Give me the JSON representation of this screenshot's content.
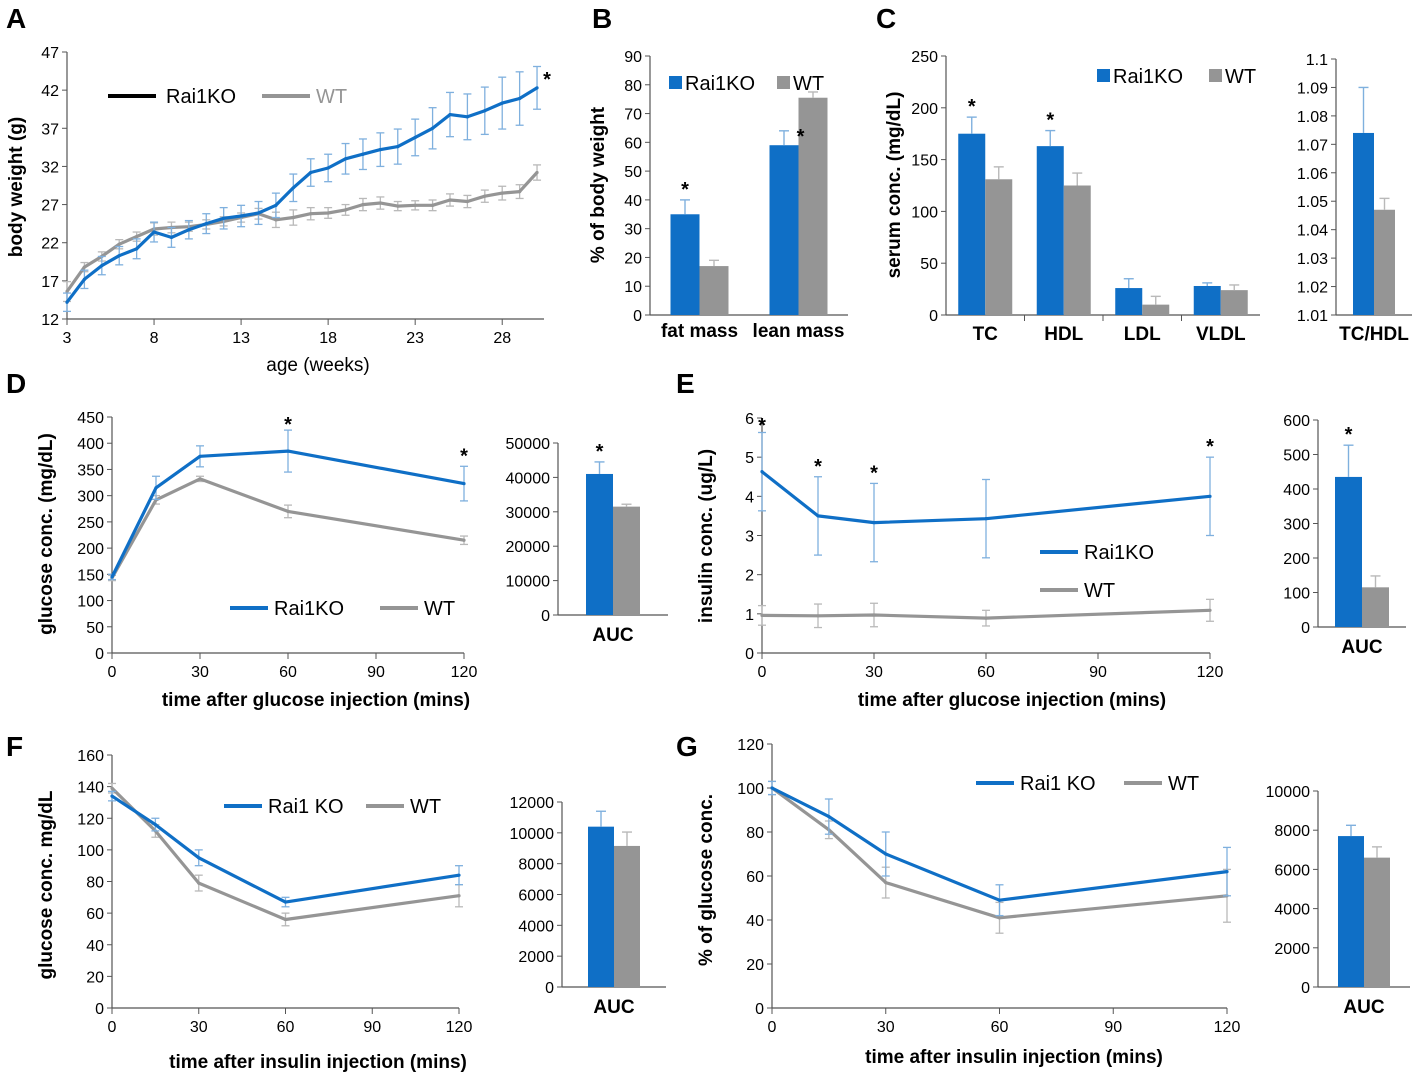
{
  "colors": {
    "ko": "#0F6FC6",
    "wt": "#959595",
    "ko_err": "#7FB0DE",
    "wt_err": "#B9B9B9"
  },
  "panels": {
    "A": {
      "letter": "A",
      "legend": [
        "Rai1KO",
        "WT"
      ],
      "xlabel": "age (weeks)",
      "ylabel": "body weight (g)"
    },
    "B": {
      "letter": "B",
      "legend": [
        "Rai1KO",
        "WT"
      ],
      "ylabel": "% of body weight"
    },
    "C": {
      "letter": "C",
      "legend": [
        "Rai1KO",
        "WT"
      ],
      "ylabel": "serum conc. (mg/dL)"
    },
    "D": {
      "letter": "D",
      "legend": [
        "Rai1KO",
        "WT"
      ],
      "xlabel": "time after glucose injection (mins)",
      "ylabel": "glucose conc. (mg/dL)"
    },
    "E": {
      "letter": "E",
      "legend": [
        "Rai1KO",
        "WT"
      ],
      "xlabel": "time after glucose injection (mins)",
      "ylabel": "insulin conc. (ug/L)"
    },
    "F": {
      "letter": "F",
      "legend": [
        "Rai1 KO",
        "WT"
      ],
      "xlabel": "time after insulin injection (mins)",
      "ylabel": "glucose conc. mg/dL"
    },
    "G": {
      "letter": "G",
      "legend": [
        "Rai1 KO",
        "WT"
      ],
      "xlabel": "time after insulin injection (mins)",
      "ylabel": "% of glucose conc."
    }
  },
  "chart_data": [
    {
      "id": "A",
      "type": "line",
      "xlabel": "age (weeks)",
      "ylabel": "body weight (g)",
      "xlim": [
        3,
        30
      ],
      "ylim": [
        12,
        47
      ],
      "xticks": [
        "3",
        "8",
        "13",
        "18",
        "23",
        "28"
      ],
      "yticks": [
        "12",
        "17",
        "22",
        "27",
        "32",
        "37",
        "42",
        "47"
      ],
      "x": [
        3,
        4,
        5,
        6,
        7,
        8,
        9,
        10,
        11,
        12,
        13,
        14,
        15,
        16,
        17,
        18,
        19,
        20,
        21,
        22,
        23,
        24,
        25,
        26,
        27,
        28,
        29,
        30
      ],
      "series": [
        {
          "name": "Rai1KO",
          "values": [
            14.2,
            17.2,
            19,
            20.3,
            21.2,
            23.4,
            22.7,
            23.7,
            24.5,
            25.2,
            25.5,
            25.9,
            26.9,
            29.2,
            31.2,
            31.8,
            33,
            33.6,
            34.2,
            34.6,
            35.8,
            37,
            38.8,
            38.5,
            39.3,
            40.3,
            40.9,
            42.3
          ],
          "errors": [
            1.2,
            1.2,
            1.2,
            1.2,
            1.3,
            1.3,
            1.3,
            1.2,
            1.3,
            1.4,
            1.4,
            1.5,
            1.6,
            1.8,
            1.8,
            1.8,
            2,
            2,
            2.2,
            2.3,
            2.4,
            2.7,
            2.9,
            3,
            3.1,
            3.4,
            3.5,
            2.8
          ]
        },
        {
          "name": "WT",
          "values": [
            15.6,
            18.8,
            20.2,
            21.8,
            22.8,
            23.8,
            24,
            24.1,
            24.4,
            24.8,
            25.3,
            25.8,
            25,
            25.3,
            25.8,
            25.9,
            26.3,
            27,
            27.2,
            26.8,
            26.9,
            26.9,
            27.6,
            27.4,
            28.1,
            28.5,
            28.7,
            31.2
          ],
          "errors": [
            1.3,
            0.6,
            0.6,
            0.6,
            0.6,
            0.8,
            0.7,
            0.6,
            0.6,
            0.6,
            0.6,
            0.7,
            1,
            1,
            0.8,
            0.7,
            0.7,
            0.8,
            0.8,
            0.6,
            0.6,
            0.7,
            0.8,
            0.8,
            0.8,
            0.9,
            0.9,
            1
          ]
        }
      ],
      "annotations": [
        {
          "x": 30,
          "text": "*"
        }
      ]
    },
    {
      "id": "B",
      "type": "bar",
      "ylabel": "% of body weight",
      "categories": [
        "fat mass",
        "lean mass"
      ],
      "ylim": [
        0,
        90
      ],
      "yticks": [
        "0",
        "10",
        "20",
        "30",
        "40",
        "50",
        "60",
        "70",
        "80",
        "90"
      ],
      "series": [
        {
          "name": "Rai1KO",
          "values": [
            35,
            59
          ],
          "errors": [
            5,
            5
          ]
        },
        {
          "name": "WT",
          "values": [
            17,
            75.5
          ],
          "errors": [
            2,
            2
          ]
        }
      ],
      "annotations": [
        {
          "category": "fat mass",
          "text": "*"
        },
        {
          "category": "lean mass",
          "text": "*"
        }
      ]
    },
    {
      "id": "C",
      "type": "bar",
      "ylabel": "serum conc. (mg/dL)",
      "categories": [
        "TC",
        "HDL",
        "LDL",
        "VLDL"
      ],
      "ylim": [
        0,
        250
      ],
      "yticks": [
        "0",
        "50",
        "100",
        "150",
        "200",
        "250"
      ],
      "series": [
        {
          "name": "Rai1KO",
          "values": [
            175,
            163,
            26,
            28
          ],
          "errors": [
            16,
            15,
            9,
            3
          ]
        },
        {
          "name": "WT",
          "values": [
            131,
            125,
            10,
            24
          ],
          "errors": [
            12,
            12,
            8,
            5
          ]
        }
      ],
      "annotations": [
        {
          "category": "TC",
          "text": "*"
        },
        {
          "category": "HDL",
          "text": "*"
        }
      ]
    },
    {
      "id": "C-ratio",
      "type": "bar",
      "categories": [
        "TC/HDL"
      ],
      "ylim": [
        1.01,
        1.1
      ],
      "yticks": [
        "1.01",
        "1.02",
        "1.03",
        "1.04",
        "1.05",
        "1.06",
        "1.07",
        "1.08",
        "1.09",
        "1.1"
      ],
      "series": [
        {
          "name": "Rai1KO",
          "values": [
            1.074
          ],
          "errors": [
            0.016
          ]
        },
        {
          "name": "WT",
          "values": [
            1.047
          ],
          "errors": [
            0.004
          ]
        }
      ]
    },
    {
      "id": "D",
      "type": "line",
      "xlabel": "time after glucose injection (mins)",
      "ylabel": "glucose conc. (mg/dL)",
      "xlim": [
        0,
        120
      ],
      "ylim": [
        0,
        450
      ],
      "xticks": [
        "0",
        "30",
        "60",
        "90",
        "120"
      ],
      "yticks": [
        "0",
        "50",
        "100",
        "150",
        "200",
        "250",
        "300",
        "350",
        "400",
        "450"
      ],
      "x": [
        0,
        15,
        30,
        60,
        120
      ],
      "series": [
        {
          "name": "Rai1KO",
          "values": [
            145,
            315,
            375,
            385,
            323
          ],
          "errors": [
            5,
            22,
            20,
            40,
            33
          ]
        },
        {
          "name": "WT",
          "values": [
            143,
            292,
            332,
            270,
            215
          ],
          "errors": [
            5,
            8,
            5,
            12,
            8
          ]
        }
      ],
      "annotations": [
        {
          "x": 60,
          "text": "*"
        },
        {
          "x": 120,
          "text": "*"
        }
      ]
    },
    {
      "id": "D-AUC",
      "type": "bar",
      "categories": [
        "AUC"
      ],
      "ylim": [
        0,
        50000
      ],
      "yticks": [
        "0",
        "10000",
        "20000",
        "30000",
        "40000",
        "50000"
      ],
      "series": [
        {
          "name": "Rai1KO",
          "values": [
            41000
          ],
          "errors": [
            3500
          ]
        },
        {
          "name": "WT",
          "values": [
            31500
          ],
          "errors": [
            700
          ]
        }
      ],
      "annotations": [
        {
          "category": "AUC",
          "text": "*"
        }
      ]
    },
    {
      "id": "E",
      "type": "line",
      "xlabel": "time after glucose injection (mins)",
      "ylabel": "insulin conc. (ug/L)",
      "xlim": [
        0,
        120
      ],
      "ylim": [
        0,
        6
      ],
      "xticks": [
        "0",
        "30",
        "60",
        "90",
        "120"
      ],
      "yticks": [
        "0",
        "1",
        "2",
        "3",
        "4",
        "5",
        "6"
      ],
      "x": [
        0,
        15,
        30,
        60,
        120
      ],
      "series": [
        {
          "name": "Rai1KO",
          "values": [
            4.63,
            3.5,
            3.33,
            3.43,
            4.0
          ],
          "errors": [
            1.0,
            1.0,
            1.0,
            1.0,
            1.0
          ]
        },
        {
          "name": "WT",
          "values": [
            0.96,
            0.95,
            0.97,
            0.89,
            1.09
          ],
          "errors": [
            0.25,
            0.3,
            0.3,
            0.2,
            0.28
          ]
        }
      ],
      "annotations": [
        {
          "x": 0,
          "text": "*"
        },
        {
          "x": 15,
          "text": "*"
        },
        {
          "x": 30,
          "text": "*"
        },
        {
          "x": 120,
          "text": "*"
        }
      ]
    },
    {
      "id": "E-AUC",
      "type": "bar",
      "categories": [
        "AUC"
      ],
      "ylim": [
        0,
        600
      ],
      "yticks": [
        "0",
        "100",
        "200",
        "300",
        "400",
        "500",
        "600"
      ],
      "series": [
        {
          "name": "Rai1KO",
          "values": [
            435
          ],
          "errors": [
            92
          ]
        },
        {
          "name": "WT",
          "values": [
            115
          ],
          "errors": [
            33
          ]
        }
      ],
      "annotations": [
        {
          "category": "AUC",
          "text": "*"
        }
      ]
    },
    {
      "id": "F",
      "type": "line",
      "xlabel": "time after insulin injection (mins)",
      "ylabel": "glucose conc. mg/dL",
      "xlim": [
        0,
        120
      ],
      "ylim": [
        0,
        160
      ],
      "xticks": [
        "0",
        "30",
        "60",
        "90",
        "120"
      ],
      "yticks": [
        "0",
        "20",
        "40",
        "60",
        "80",
        "100",
        "120",
        "140",
        "160"
      ],
      "x": [
        0,
        15,
        30,
        60,
        120
      ],
      "series": [
        {
          "name": "Rai1 KO",
          "values": [
            134,
            116,
            95,
            67,
            84
          ],
          "errors": [
            3,
            4,
            5,
            3,
            6
          ]
        },
        {
          "name": "WT",
          "values": [
            139,
            112,
            79,
            56,
            71
          ],
          "errors": [
            3,
            4,
            5,
            4,
            7
          ]
        }
      ]
    },
    {
      "id": "F-AUC",
      "type": "bar",
      "categories": [
        "AUC"
      ],
      "ylim": [
        0,
        12000
      ],
      "yticks": [
        "0",
        "2000",
        "4000",
        "6000",
        "8000",
        "10000",
        "12000"
      ],
      "series": [
        {
          "name": "Rai1 KO",
          "values": [
            10400
          ],
          "errors": [
            1000
          ]
        },
        {
          "name": "WT",
          "values": [
            9150
          ],
          "errors": [
            900
          ]
        }
      ]
    },
    {
      "id": "G",
      "type": "line",
      "xlabel": "time after insulin injection (mins)",
      "ylabel": "% of glucose conc.",
      "xlim": [
        0,
        120
      ],
      "ylim": [
        0,
        120
      ],
      "xticks": [
        "0",
        "30",
        "60",
        "90",
        "120"
      ],
      "yticks": [
        "0",
        "20",
        "40",
        "60",
        "80",
        "100",
        "120"
      ],
      "x": [
        0,
        15,
        30,
        60,
        120
      ],
      "series": [
        {
          "name": "Rai1 KO",
          "values": [
            100,
            87,
            70,
            49,
            62
          ],
          "errors": [
            3,
            8,
            10,
            7,
            11
          ]
        },
        {
          "name": "WT",
          "values": [
            100,
            81,
            57,
            41,
            51
          ],
          "errors": [
            3,
            4,
            7,
            7,
            12
          ]
        }
      ]
    },
    {
      "id": "G-AUC",
      "type": "bar",
      "categories": [
        "AUC"
      ],
      "ylim": [
        0,
        10000
      ],
      "yticks": [
        "0",
        "2000",
        "4000",
        "6000",
        "8000",
        "10000"
      ],
      "series": [
        {
          "name": "Rai1 KO",
          "values": [
            7700
          ],
          "errors": [
            550
          ]
        },
        {
          "name": "WT",
          "values": [
            6600
          ],
          "errors": [
            550
          ]
        }
      ]
    }
  ]
}
